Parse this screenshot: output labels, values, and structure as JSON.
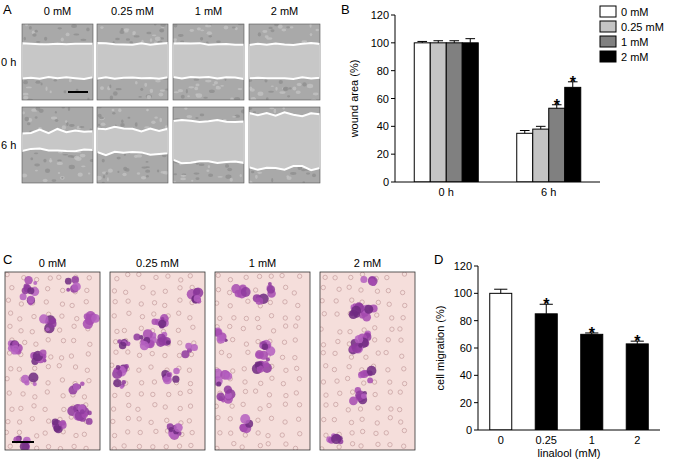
{
  "figure": {
    "panels": [
      {
        "title": "A",
        "column_labels": [
          "0 mM",
          "0.25 mM",
          "1 mM",
          "2 mM"
        ],
        "row_labels": [
          "0 h",
          "6 h"
        ]
      },
      {
        "title": "C",
        "column_labels": [
          "0 mM",
          "0.25 mM",
          "1 mM",
          "2 mM"
        ]
      }
    ]
  },
  "chart_data": [
    {
      "type": "bar",
      "title": "B",
      "categories": [
        "0 h",
        "6 h"
      ],
      "y_label": "wound area (%)",
      "ylim": [
        0,
        120
      ],
      "yticks": [
        0,
        20,
        40,
        60,
        80,
        100,
        120
      ],
      "grid": false,
      "legend": "upper right",
      "series": [
        {
          "name": "0 mM",
          "color": "#ffffff",
          "values": [
            100,
            35
          ],
          "errors": [
            1,
            2
          ],
          "significance": [
            null,
            null
          ]
        },
        {
          "name": "0.25 mM",
          "color": "#c4c4c4",
          "values": [
            100,
            38
          ],
          "errors": [
            1.5,
            2
          ],
          "significance": [
            null,
            null
          ]
        },
        {
          "name": "1 mM",
          "color": "#808080",
          "values": [
            100,
            53
          ],
          "errors": [
            1.5,
            2.5
          ],
          "significance": [
            null,
            "*"
          ]
        },
        {
          "name": "2 mM",
          "color": "#000000",
          "values": [
            100,
            68
          ],
          "errors": [
            3,
            4
          ],
          "significance": [
            null,
            "*"
          ]
        }
      ]
    },
    {
      "type": "bar",
      "title": "D",
      "categories": [
        "0",
        "0.25",
        "1",
        "2"
      ],
      "x_label": "linalool (mM)",
      "y_label": "cell migration (%)",
      "ylim": [
        0,
        120
      ],
      "yticks": [
        0,
        20,
        40,
        60,
        80,
        100,
        120
      ],
      "grid": false,
      "colors": [
        "#ffffff",
        "#000000",
        "#000000",
        "#000000"
      ],
      "values": [
        100,
        85,
        70,
        63
      ],
      "errors": [
        3,
        7,
        1,
        2
      ],
      "significance": [
        null,
        "*",
        "*",
        "*"
      ]
    }
  ]
}
